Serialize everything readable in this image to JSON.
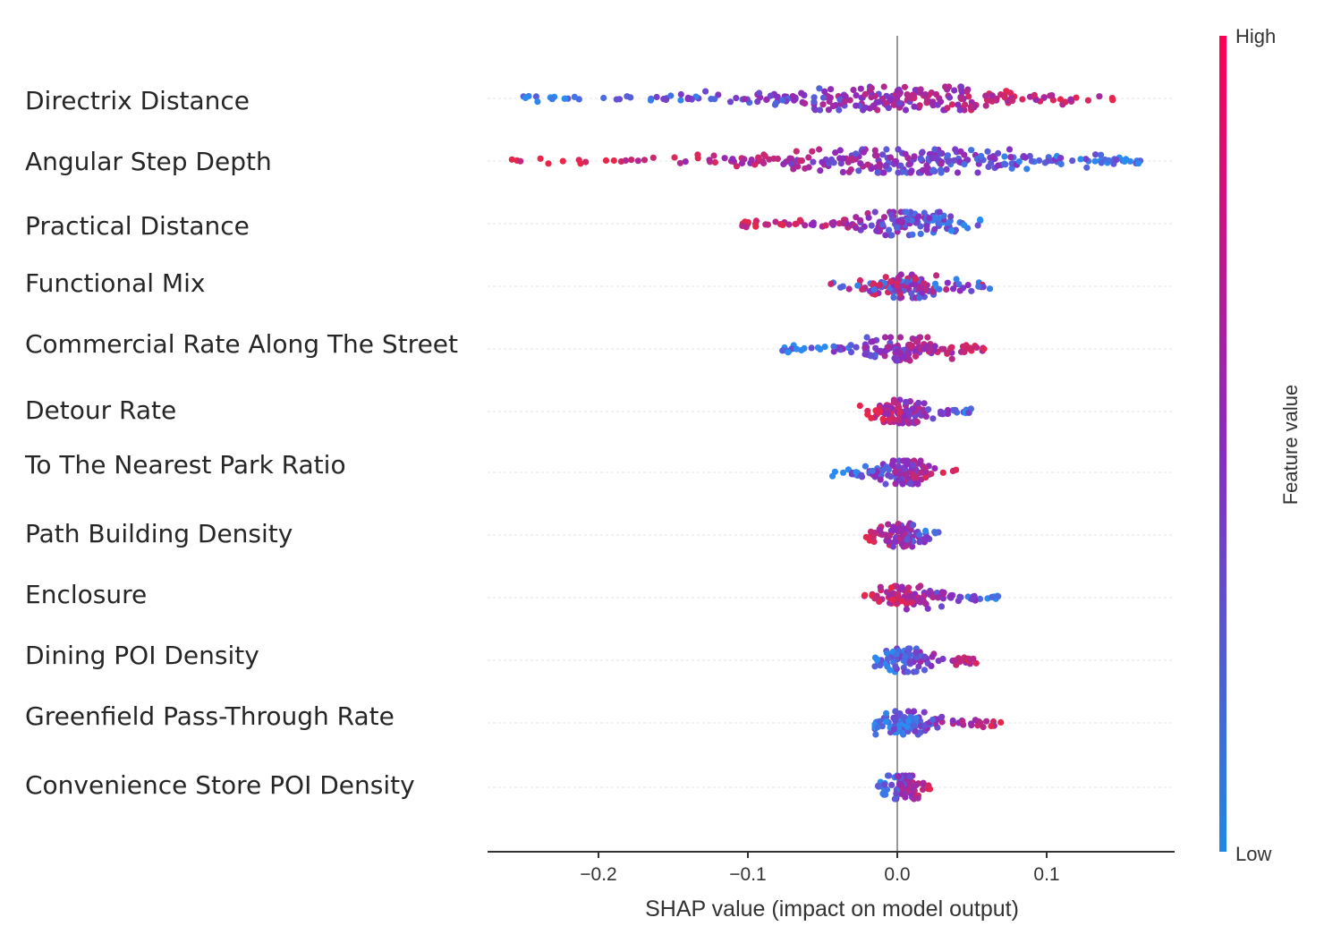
{
  "chart_data": {
    "type": "scatter",
    "subtype": "shap-beeswarm",
    "xlabel": "SHAP value (impact on model output)",
    "xlim": [
      -0.277,
      0.19
    ],
    "xticks": [
      -0.2,
      -0.1,
      0.0,
      0.1
    ],
    "xtick_labels": [
      "−0.2",
      "−0.1",
      "0.0",
      "0.1"
    ],
    "zero_line": 0.0,
    "features": [
      {
        "name": "Directrix Distance",
        "xmin": -0.255,
        "xmax": 0.145
      },
      {
        "name": "Angular Step Depth",
        "xmin": -0.258,
        "xmax": 0.165
      },
      {
        "name": "Practical Distance",
        "xmin": -0.108,
        "xmax": 0.056
      },
      {
        "name": "Functional Mix",
        "xmin": -0.045,
        "xmax": 0.062
      },
      {
        "name": "Commercial Rate Along The Street",
        "xmin": -0.078,
        "xmax": 0.058
      },
      {
        "name": "Detour Rate",
        "xmin": -0.025,
        "xmax": 0.052
      },
      {
        "name": "To The Nearest Park Ratio",
        "xmin": -0.045,
        "xmax": 0.04
      },
      {
        "name": "Path Building Density",
        "xmin": -0.022,
        "xmax": 0.028
      },
      {
        "name": "Enclosure",
        "xmin": -0.022,
        "xmax": 0.068
      },
      {
        "name": "Dining POI Density",
        "xmin": -0.015,
        "xmax": 0.053
      },
      {
        "name": "Greenfield Pass-Through Rate",
        "xmin": -0.015,
        "xmax": 0.072
      },
      {
        "name": "Convenience Store POI Density",
        "xmin": -0.013,
        "xmax": 0.022
      }
    ],
    "colorbar": {
      "label": "Feature value",
      "high_label": "High",
      "low_label": "Low",
      "high_color": "#e8264a",
      "low_color": "#2a8cf0",
      "mid_color": "#8a2bc0"
    }
  }
}
